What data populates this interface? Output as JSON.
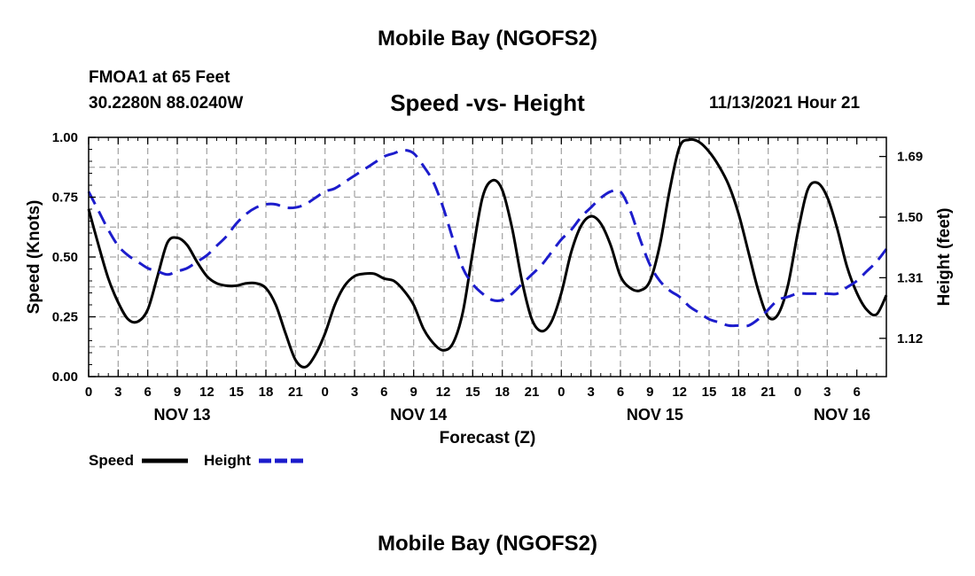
{
  "header": {
    "title": "Mobile Bay (NGOFS2)",
    "station": "FMOA1 at 65 Feet",
    "coords": "30.2280N  88.0240W",
    "datetime": "11/13/2021 Hour 21",
    "footer_title": "Mobile Bay (NGOFS2)"
  },
  "chart_data": {
    "type": "line",
    "title": "Speed -vs- Height",
    "xlabel": "Forecast (Z)",
    "ylabel_left": "Speed (Knots)",
    "ylabel_right": "Height (feet)",
    "x_range_hours": [
      0,
      81
    ],
    "x_tick_labels": [
      "0",
      "3",
      "6",
      "9",
      "12",
      "15",
      "18",
      "21",
      "0",
      "3",
      "6",
      "9",
      "12",
      "15",
      "18",
      "21",
      "0",
      "3",
      "6",
      "9",
      "12",
      "15",
      "18",
      "21",
      "0",
      "3",
      "6"
    ],
    "day_labels": [
      {
        "label": "NOV 13",
        "hour": 9.5
      },
      {
        "label": "NOV 14",
        "hour": 33.5
      },
      {
        "label": "NOV 15",
        "hour": 57.5
      },
      {
        "label": "NOV 16",
        "hour": 76.5
      }
    ],
    "y_left": {
      "min": 0,
      "max": 1.0,
      "ticks": [
        "0.00",
        "0.25",
        "0.50",
        "0.75",
        "1.00"
      ]
    },
    "y_right": {
      "min": 1.0,
      "max": 1.75,
      "ticks": [
        "1.12",
        "1.31",
        "1.50",
        "1.69"
      ]
    },
    "grid": true,
    "legend": [
      {
        "name": "Speed",
        "color": "#000000",
        "style": "solid"
      },
      {
        "name": "Height",
        "color": "#1c1ccc",
        "style": "dashed"
      }
    ],
    "series": [
      {
        "name": "Speed",
        "axis": "left",
        "color": "#000000",
        "x": [
          0,
          1,
          2,
          3,
          4,
          5,
          6,
          7,
          8,
          9,
          10,
          11,
          12,
          13,
          14,
          15,
          16,
          17,
          18,
          19,
          20,
          21,
          22,
          23,
          24,
          25,
          26,
          27,
          28,
          29,
          30,
          31,
          32,
          33,
          34,
          35,
          36,
          37,
          38,
          39,
          40,
          41,
          42,
          43,
          44,
          45,
          46,
          47,
          48,
          49,
          50,
          51,
          52,
          53,
          54,
          55,
          56,
          57,
          58,
          59,
          60,
          61,
          62,
          63,
          64,
          65,
          66,
          67,
          68,
          69,
          70,
          71,
          72,
          73,
          74,
          75,
          76,
          77,
          78,
          79,
          80,
          81
        ],
        "values": [
          0.7,
          0.55,
          0.41,
          0.31,
          0.24,
          0.23,
          0.28,
          0.42,
          0.56,
          0.58,
          0.55,
          0.48,
          0.42,
          0.39,
          0.38,
          0.38,
          0.39,
          0.39,
          0.37,
          0.3,
          0.18,
          0.07,
          0.04,
          0.09,
          0.18,
          0.3,
          0.38,
          0.42,
          0.43,
          0.43,
          0.41,
          0.4,
          0.36,
          0.3,
          0.2,
          0.14,
          0.11,
          0.14,
          0.27,
          0.52,
          0.75,
          0.82,
          0.78,
          0.62,
          0.4,
          0.24,
          0.19,
          0.23,
          0.35,
          0.52,
          0.63,
          0.67,
          0.64,
          0.55,
          0.42,
          0.37,
          0.36,
          0.4,
          0.55,
          0.78,
          0.96,
          0.99,
          0.98,
          0.94,
          0.88,
          0.8,
          0.68,
          0.52,
          0.36,
          0.25,
          0.26,
          0.38,
          0.6,
          0.78,
          0.81,
          0.75,
          0.62,
          0.46,
          0.35,
          0.28,
          0.26,
          0.34
        ]
      },
      {
        "name": "Height",
        "axis": "right",
        "color": "#1c1ccc",
        "x": [
          0,
          1,
          2,
          3,
          4,
          5,
          6,
          7,
          8,
          9,
          10,
          11,
          12,
          13,
          14,
          15,
          16,
          17,
          18,
          19,
          20,
          21,
          22,
          23,
          24,
          25,
          26,
          27,
          28,
          29,
          30,
          31,
          32,
          33,
          34,
          35,
          36,
          37,
          38,
          39,
          40,
          41,
          42,
          43,
          44,
          45,
          46,
          47,
          48,
          49,
          50,
          51,
          52,
          53,
          54,
          55,
          56,
          57,
          58,
          59,
          60,
          61,
          62,
          63,
          64,
          65,
          66,
          67,
          68,
          69,
          70,
          71,
          72,
          73,
          74,
          75,
          76,
          77,
          78,
          79,
          80,
          81
        ],
        "values": [
          1.58,
          1.52,
          1.46,
          1.41,
          1.38,
          1.36,
          1.34,
          1.33,
          1.32,
          1.33,
          1.34,
          1.36,
          1.38,
          1.41,
          1.44,
          1.48,
          1.51,
          1.53,
          1.54,
          1.54,
          1.53,
          1.53,
          1.54,
          1.56,
          1.58,
          1.59,
          1.61,
          1.63,
          1.65,
          1.67,
          1.69,
          1.7,
          1.71,
          1.7,
          1.66,
          1.61,
          1.53,
          1.43,
          1.34,
          1.29,
          1.26,
          1.24,
          1.24,
          1.26,
          1.29,
          1.32,
          1.35,
          1.39,
          1.43,
          1.46,
          1.5,
          1.53,
          1.56,
          1.58,
          1.58,
          1.52,
          1.43,
          1.35,
          1.3,
          1.27,
          1.25,
          1.22,
          1.2,
          1.18,
          1.17,
          1.16,
          1.16,
          1.16,
          1.18,
          1.21,
          1.24,
          1.25,
          1.26,
          1.26,
          1.26,
          1.26,
          1.26,
          1.28,
          1.3,
          1.33,
          1.36,
          1.4
        ]
      }
    ]
  }
}
